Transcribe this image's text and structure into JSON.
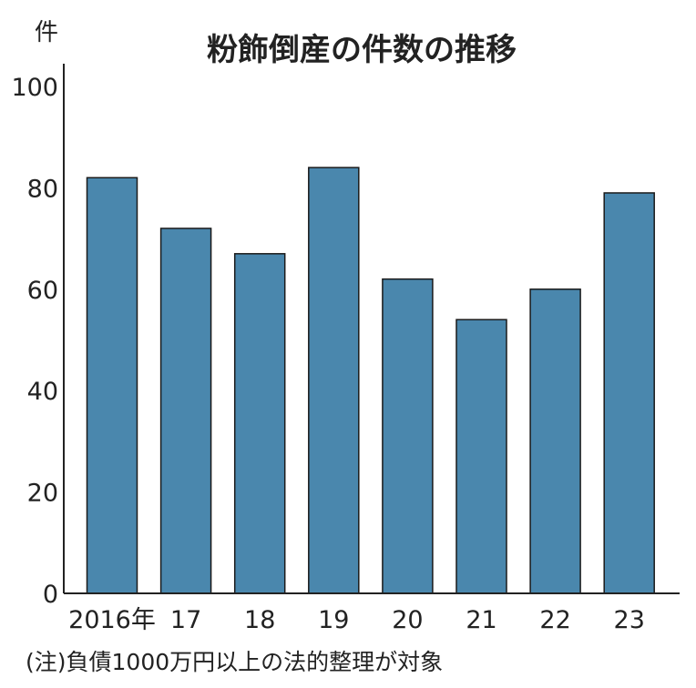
{
  "chart_data": {
    "type": "bar",
    "title": "粉飾倒産の件数の推移",
    "unit_label": "件",
    "categories": [
      "2016年",
      "17",
      "18",
      "19",
      "20",
      "21",
      "22",
      "23"
    ],
    "values": [
      82,
      72,
      67,
      84,
      62,
      54,
      60,
      79
    ],
    "ylim": [
      0,
      100
    ],
    "yticks": [
      "0",
      "20",
      "40",
      "60",
      "80",
      "100"
    ],
    "xlabel": "",
    "ylabel": "",
    "grid": false,
    "bar_color": "#4a87ad",
    "note": "(注)負債1000万円以上の法的整理が対象"
  }
}
